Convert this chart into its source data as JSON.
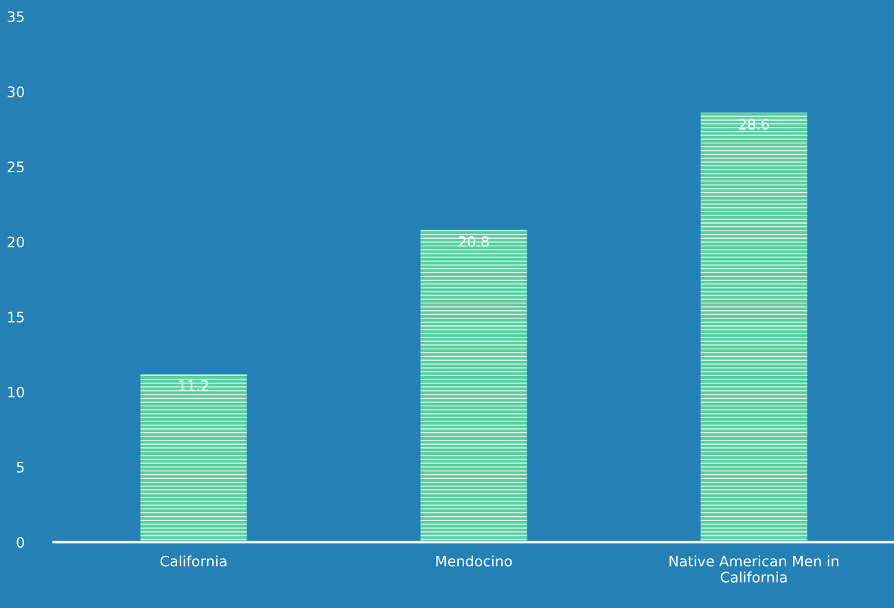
{
  "chart_data": {
    "type": "bar",
    "categories": [
      "California",
      "Mendocino",
      "Native American Men in\nCalifornia"
    ],
    "values": [
      11.2,
      20.8,
      28.6
    ],
    "color": "#5ccf9f",
    "data_labels": true,
    "ylim": [
      0,
      35
    ],
    "yticks": [
      0,
      5,
      10,
      15,
      20,
      25,
      30,
      35
    ],
    "grid": false,
    "legend": false
  }
}
